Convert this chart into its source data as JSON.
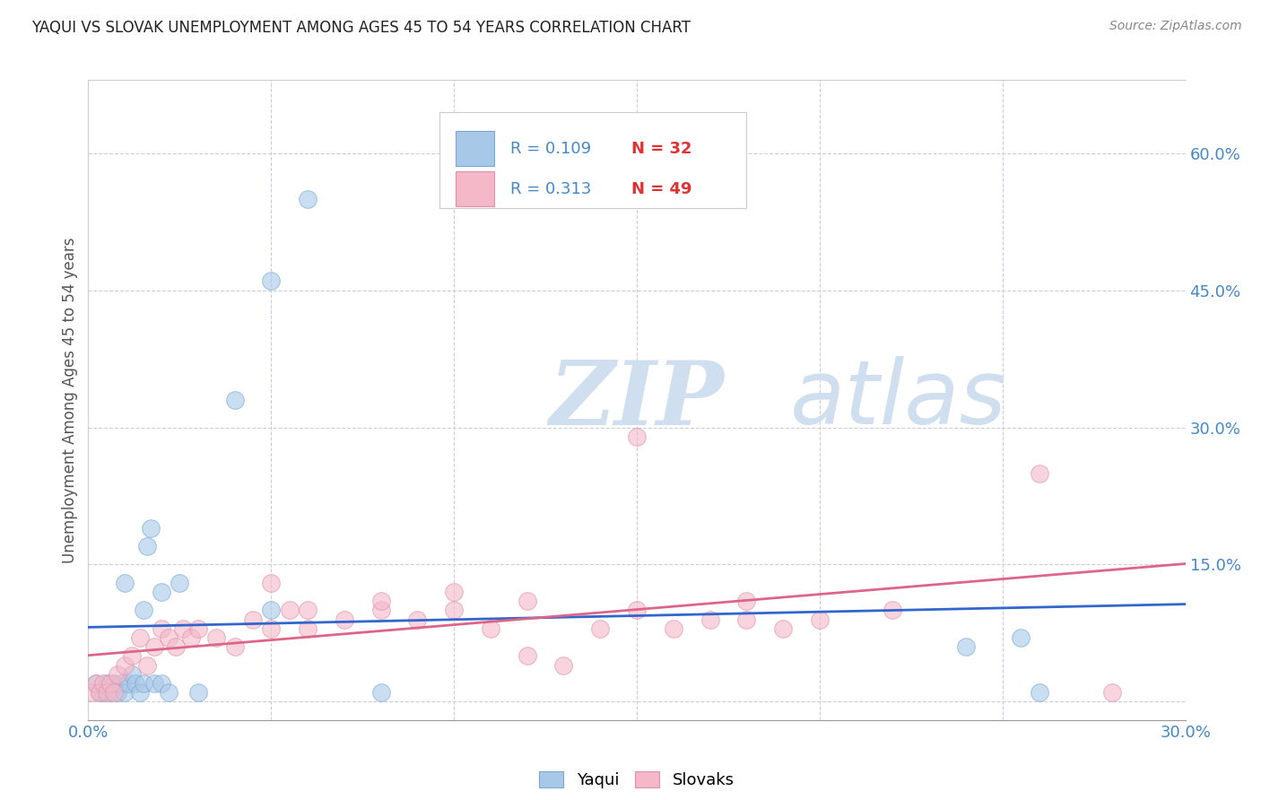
{
  "title": "YAQUI VS SLOVAK UNEMPLOYMENT AMONG AGES 45 TO 54 YEARS CORRELATION CHART",
  "source": "Source: ZipAtlas.com",
  "ylabel": "Unemployment Among Ages 45 to 54 years",
  "xlim": [
    0.0,
    0.3
  ],
  "ylim": [
    -0.02,
    0.68
  ],
  "x_ticks": [
    0.0,
    0.05,
    0.1,
    0.15,
    0.2,
    0.25,
    0.3
  ],
  "x_tick_labels": [
    "0.0%",
    "",
    "",
    "",
    "",
    "",
    "30.0%"
  ],
  "y_ticks_right": [
    0.0,
    0.15,
    0.3,
    0.45,
    0.6
  ],
  "y_tick_labels_right": [
    "",
    "15.0%",
    "30.0%",
    "45.0%",
    "60.0%"
  ],
  "yaqui_color": "#a8c8e8",
  "slovak_color": "#f4b8c8",
  "yaqui_line_color": "#3366cc",
  "slovak_line_color": "#dd6688",
  "yaqui_marker_edge": "#7aa8d0",
  "slovak_marker_edge": "#e090a8",
  "yaqui_R": 0.109,
  "yaqui_N": 32,
  "slovak_R": 0.313,
  "slovak_N": 49,
  "watermark_zip": "ZIP",
  "watermark_atlas": "atlas",
  "watermark_color": "#d0dff0",
  "yaqui_x": [
    0.002,
    0.003,
    0.004,
    0.005,
    0.006,
    0.007,
    0.008,
    0.009,
    0.01,
    0.011,
    0.012,
    0.013,
    0.014,
    0.015,
    0.016,
    0.017,
    0.018,
    0.02,
    0.022,
    0.025,
    0.03,
    0.04,
    0.05,
    0.06,
    0.08,
    0.01,
    0.015,
    0.02,
    0.05,
    0.24,
    0.255,
    0.26
  ],
  "yaqui_y": [
    0.02,
    0.01,
    0.01,
    0.02,
    0.01,
    0.02,
    0.01,
    0.02,
    0.01,
    0.02,
    0.03,
    0.02,
    0.01,
    0.02,
    0.17,
    0.19,
    0.02,
    0.02,
    0.01,
    0.13,
    0.01,
    0.33,
    0.46,
    0.55,
    0.01,
    0.13,
    0.1,
    0.12,
    0.1,
    0.06,
    0.07,
    0.01
  ],
  "slovak_x": [
    0.001,
    0.002,
    0.003,
    0.004,
    0.005,
    0.006,
    0.007,
    0.008,
    0.01,
    0.012,
    0.014,
    0.016,
    0.018,
    0.02,
    0.022,
    0.024,
    0.026,
    0.028,
    0.03,
    0.035,
    0.04,
    0.045,
    0.05,
    0.055,
    0.06,
    0.07,
    0.08,
    0.09,
    0.1,
    0.11,
    0.12,
    0.13,
    0.14,
    0.15,
    0.16,
    0.17,
    0.18,
    0.19,
    0.2,
    0.22,
    0.05,
    0.06,
    0.08,
    0.1,
    0.12,
    0.15,
    0.18,
    0.26,
    0.28
  ],
  "slovak_y": [
    0.01,
    0.02,
    0.01,
    0.02,
    0.01,
    0.02,
    0.01,
    0.03,
    0.04,
    0.05,
    0.07,
    0.04,
    0.06,
    0.08,
    0.07,
    0.06,
    0.08,
    0.07,
    0.08,
    0.07,
    0.06,
    0.09,
    0.08,
    0.1,
    0.08,
    0.09,
    0.1,
    0.09,
    0.1,
    0.08,
    0.05,
    0.04,
    0.08,
    0.29,
    0.08,
    0.09,
    0.09,
    0.08,
    0.09,
    0.1,
    0.13,
    0.1,
    0.11,
    0.12,
    0.11,
    0.1,
    0.11,
    0.25,
    0.01
  ],
  "legend_R_color": "#4488cc",
  "legend_N_color": "#dd3333",
  "tick_color": "#4488cc",
  "grid_color": "#ccccdd",
  "grid_style": "--",
  "title_fontsize": 12,
  "tick_fontsize": 13,
  "ylabel_fontsize": 12,
  "source_fontsize": 10,
  "scatter_size": 200,
  "scatter_alpha": 0.6,
  "line_width": 2.0
}
